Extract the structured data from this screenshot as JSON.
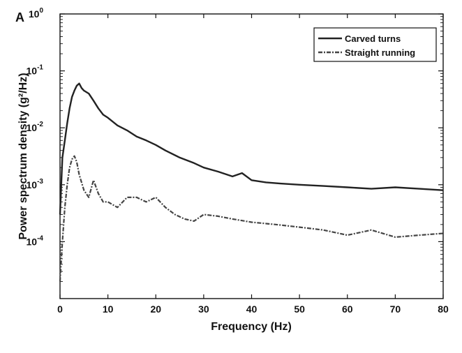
{
  "chart_data": {
    "type": "line",
    "panel_label": "A",
    "xlabel": "Frequency (Hz)",
    "ylabel": "Power spectrum density (g²/Hz)",
    "xlim": [
      0,
      80
    ],
    "ylim": [
      1e-05,
      1
    ],
    "yscale": "log",
    "x_ticks": [
      "0",
      "10",
      "20",
      "30",
      "40",
      "50",
      "60",
      "70",
      "80"
    ],
    "y_ticks": [
      {
        "base": "10",
        "exp": "0"
      },
      {
        "base": "10",
        "exp": "-1"
      },
      {
        "base": "10",
        "exp": "-2"
      },
      {
        "base": "10",
        "exp": "-3"
      },
      {
        "base": "10",
        "exp": "-4"
      }
    ],
    "grid": false,
    "legend_position": "top-right",
    "series": [
      {
        "name": "Carved turns",
        "style": "solid",
        "color": "#222222",
        "x": [
          0,
          0.5,
          1,
          1.5,
          2,
          2.5,
          3,
          3.5,
          4,
          4.5,
          5,
          6,
          7,
          8,
          9,
          10,
          12,
          14,
          16,
          18,
          20,
          22,
          25,
          28,
          30,
          33,
          36,
          38,
          40,
          43,
          46,
          50,
          55,
          60,
          65,
          70,
          75,
          80
        ],
        "y": [
          0.0003,
          0.003,
          0.006,
          0.012,
          0.022,
          0.035,
          0.045,
          0.055,
          0.06,
          0.05,
          0.045,
          0.04,
          0.03,
          0.022,
          0.017,
          0.015,
          0.011,
          0.009,
          0.007,
          0.006,
          0.005,
          0.004,
          0.003,
          0.0024,
          0.002,
          0.0017,
          0.0014,
          0.0016,
          0.0012,
          0.0011,
          0.00105,
          0.001,
          0.00095,
          0.0009,
          0.00085,
          0.0009,
          0.00085,
          0.0008
        ]
      },
      {
        "name": "Straight running",
        "style": "dash-dot",
        "color": "#444444",
        "x": [
          0,
          0.5,
          1,
          1.5,
          2,
          2.5,
          3,
          3.5,
          4,
          5,
          6,
          7,
          8,
          9,
          10,
          12,
          14,
          16,
          18,
          20,
          22,
          24,
          26,
          28,
          30,
          33,
          36,
          40,
          45,
          50,
          55,
          60,
          65,
          70,
          75,
          80
        ],
        "y": [
          2e-05,
          0.0001,
          0.0004,
          0.001,
          0.002,
          0.0028,
          0.0032,
          0.0025,
          0.0015,
          0.0008,
          0.0006,
          0.0012,
          0.0007,
          0.0005,
          0.0005,
          0.0004,
          0.0006,
          0.0006,
          0.0005,
          0.0006,
          0.0004,
          0.0003,
          0.00025,
          0.00023,
          0.0003,
          0.00028,
          0.00025,
          0.00022,
          0.0002,
          0.00018,
          0.00016,
          0.00013,
          0.00016,
          0.00012,
          0.00013,
          0.00014
        ]
      }
    ]
  }
}
